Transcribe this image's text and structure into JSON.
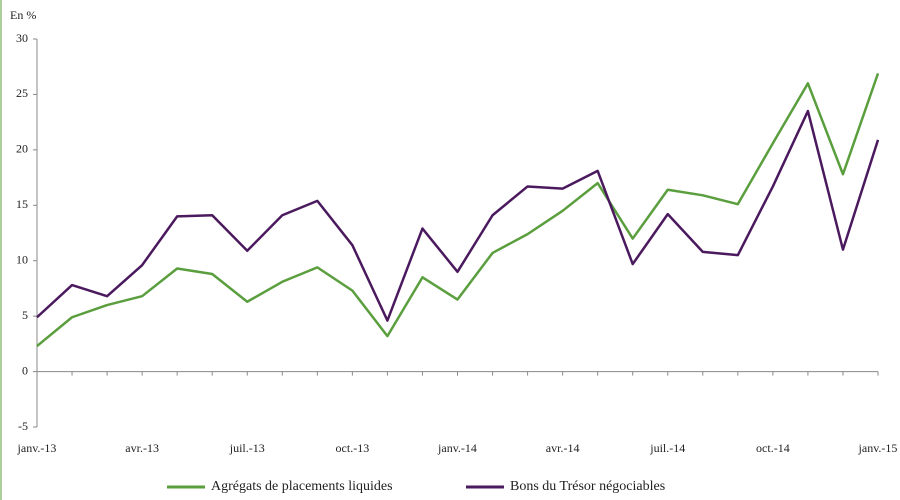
{
  "chart_data": {
    "type": "line",
    "y_label": "En %",
    "categories": [
      "janv.-13",
      null,
      null,
      "avr.-13",
      null,
      null,
      "juil.-13",
      null,
      null,
      "oct.-13",
      null,
      null,
      "janv.-14",
      null,
      null,
      "avr.-14",
      null,
      null,
      "juil.-14",
      null,
      null,
      "oct.-14",
      null,
      null,
      "janv.-15"
    ],
    "series": [
      {
        "name": "Agrégats de placements liquides",
        "color": "#5a9e3e",
        "values": [
          2.3,
          4.9,
          6.0,
          6.8,
          9.3,
          8.8,
          6.3,
          8.1,
          9.4,
          7.3,
          3.2,
          8.5,
          6.5,
          10.7,
          12.4,
          14.5,
          17.0,
          12.0,
          16.4,
          15.9,
          15.1,
          20.6,
          26.0,
          17.8,
          26.9
        ]
      },
      {
        "name": "Bons du Trésor négociables",
        "color": "#4b1a5e",
        "values": [
          4.9,
          7.8,
          6.8,
          9.6,
          14.0,
          14.1,
          10.9,
          14.1,
          15.4,
          11.4,
          4.6,
          12.9,
          9.0,
          14.1,
          16.7,
          16.5,
          18.1,
          9.7,
          14.2,
          10.8,
          10.5,
          16.7,
          23.5,
          11.0,
          20.9
        ]
      }
    ],
    "ylim": [
      -5,
      30
    ],
    "yticks": [
      -5,
      0,
      5,
      10,
      15,
      20,
      25,
      30
    ],
    "legend": "bottom"
  }
}
